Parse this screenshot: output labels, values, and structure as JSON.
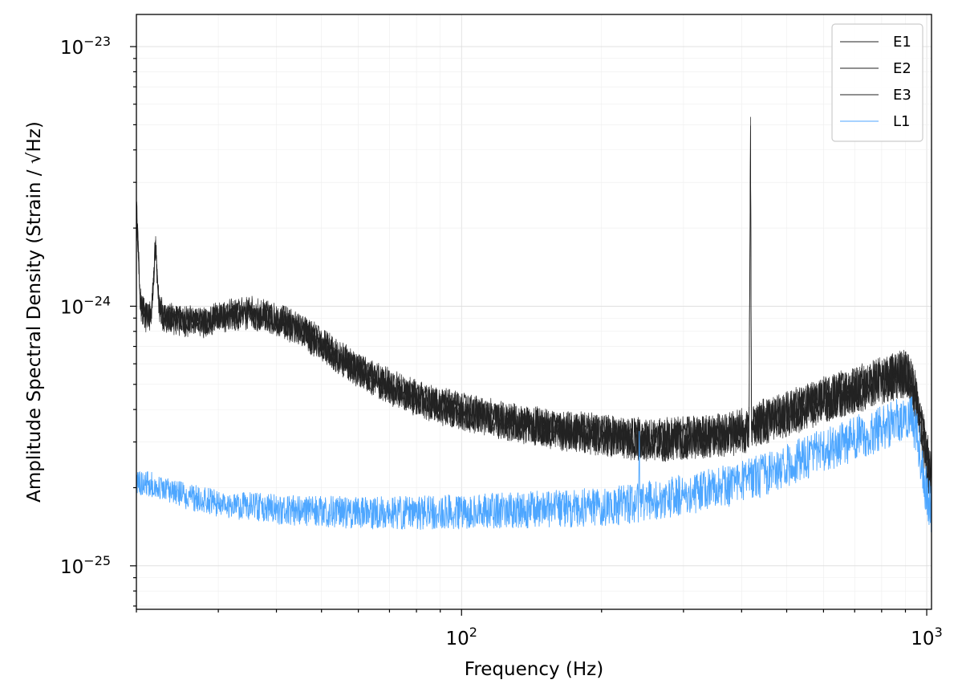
{
  "chart_data": {
    "type": "line",
    "title": "",
    "xlabel": "Frequency (Hz)",
    "ylabel": "Amplitude Spectral Density (Strain / √Hz)",
    "xscale": "log",
    "yscale": "log",
    "xlim": [
      20,
      1024
    ],
    "ylim": [
      6.8e-26,
      1.33e-23
    ],
    "x_ticks": [
      {
        "base": "10",
        "exp": "2",
        "value": 100
      },
      {
        "base": "10",
        "exp": "3",
        "value": 1000
      }
    ],
    "y_ticks": [
      {
        "base": "10",
        "exp": "−25",
        "value": 1e-25
      },
      {
        "base": "10",
        "exp": "−24",
        "value": 1e-24
      },
      {
        "base": "10",
        "exp": "−23",
        "value": 1e-23
      }
    ],
    "grid": true,
    "legend_position": "top-right",
    "series": [
      {
        "name": "E1",
        "color": "#222222",
        "x": [
          20,
          20.4,
          21,
          21.5,
          22,
          22.4,
          23,
          25,
          28,
          30,
          33,
          35,
          38,
          42,
          47,
          52,
          60,
          70,
          80,
          90,
          100,
          110,
          130,
          150,
          170,
          200,
          230,
          260,
          300,
          350,
          400,
          415,
          418,
          420,
          422,
          425,
          440,
          500,
          600,
          700,
          800,
          860,
          900,
          930,
          950,
          980,
          1000,
          1024
        ],
        "y": [
          2.5e-24,
          1.05e-24,
          9.2e-25,
          9.3e-25,
          1.8e-24,
          1e-24,
          9.3e-25,
          9e-25,
          8.8e-25,
          9.3e-25,
          9.5e-25,
          9.7e-25,
          9.3e-25,
          8.8e-25,
          7.9e-25,
          6.9e-25,
          5.8e-25,
          5e-25,
          4.5e-25,
          4.2e-25,
          4e-25,
          3.85e-25,
          3.6e-25,
          3.45e-25,
          3.35e-25,
          3.25e-25,
          3.15e-25,
          3.1e-25,
          3.15e-25,
          3.2e-25,
          3.35e-25,
          3.4e-25,
          4.95e-24,
          3.45e-25,
          3.45e-25,
          3.5e-25,
          3.6e-25,
          3.9e-25,
          4.4e-25,
          4.8e-25,
          5.2e-25,
          5.4e-25,
          5.6e-25,
          5.2e-25,
          4.5e-25,
          3.3e-25,
          2.7e-25,
          2.2e-25
        ]
      },
      {
        "name": "E2",
        "color": "#222222",
        "x": [
          20,
          20.4,
          21,
          21.5,
          22,
          22.4,
          23,
          25,
          28,
          30,
          33,
          35,
          38,
          42,
          47,
          52,
          60,
          70,
          80,
          90,
          100,
          110,
          130,
          150,
          170,
          200,
          230,
          260,
          300,
          350,
          400,
          415,
          418,
          420,
          422,
          425,
          440,
          500,
          600,
          700,
          800,
          860,
          900,
          930,
          950,
          980,
          1000,
          1024
        ],
        "y": [
          2.4e-24,
          1e-24,
          9e-25,
          9.1e-25,
          1.7e-24,
          9.8e-25,
          9e-25,
          8.9e-25,
          8.7e-25,
          9.1e-25,
          9.3e-25,
          9.5e-25,
          9.1e-25,
          8.6e-25,
          7.7e-25,
          6.8e-25,
          5.7e-25,
          4.9e-25,
          4.4e-25,
          4.1e-25,
          3.9e-25,
          3.8e-25,
          3.55e-25,
          3.4e-25,
          3.3e-25,
          3.2e-25,
          3.1e-25,
          3.05e-25,
          3.1e-25,
          3.15e-25,
          3.3e-25,
          3.35e-25,
          4.8e-24,
          3.4e-25,
          3.4e-25,
          3.45e-25,
          3.55e-25,
          3.85e-25,
          4.35e-25,
          4.75e-25,
          5.15e-25,
          5.35e-25,
          5.5e-25,
          5.1e-25,
          4.4e-25,
          3.2e-25,
          2.6e-25,
          2.15e-25
        ]
      },
      {
        "name": "E3",
        "color": "#222222",
        "x": [
          20,
          20.4,
          21,
          21.5,
          22,
          22.4,
          23,
          25,
          28,
          30,
          33,
          35,
          38,
          42,
          47,
          52,
          60,
          70,
          80,
          90,
          100,
          110,
          130,
          150,
          170,
          200,
          230,
          260,
          300,
          350,
          400,
          415,
          418,
          420,
          422,
          425,
          440,
          500,
          600,
          700,
          800,
          860,
          900,
          930,
          950,
          980,
          1000,
          1024
        ],
        "y": [
          2.45e-24,
          1e-24,
          8.8e-25,
          9e-25,
          1.6e-24,
          9.5e-25,
          8.8e-25,
          8.6e-25,
          8.5e-25,
          8.9e-25,
          9.1e-25,
          9.2e-25,
          8.9e-25,
          8.4e-25,
          7.5e-25,
          6.6e-25,
          5.6e-25,
          4.8e-25,
          4.35e-25,
          4.05e-25,
          3.85e-25,
          3.75e-25,
          3.5e-25,
          3.35e-25,
          3.25e-25,
          3.15e-25,
          3.05e-25,
          3e-25,
          3.05e-25,
          3.1e-25,
          3.25e-25,
          3.3e-25,
          4.7e-24,
          3.35e-25,
          3.35e-25,
          3.4e-25,
          3.5e-25,
          3.8e-25,
          4.3e-25,
          4.7e-25,
          5.1e-25,
          5.3e-25,
          5.45e-25,
          5e-25,
          4.3e-25,
          3.1e-25,
          2.5e-25,
          2.1e-25
        ]
      },
      {
        "name": "L1",
        "color": "#4da6ff",
        "x": [
          20,
          21,
          22,
          24,
          26,
          28,
          30,
          33,
          36,
          40,
          45,
          50,
          60,
          70,
          80,
          100,
          120,
          150,
          180,
          200,
          230,
          240,
          241,
          242,
          250,
          280,
          300,
          350,
          400,
          450,
          500,
          600,
          700,
          800,
          880,
          930,
          960,
          990,
          1024
        ],
        "y": [
          2.05e-25,
          2.1e-25,
          2e-25,
          1.9e-25,
          1.85e-25,
          1.78e-25,
          1.75e-25,
          1.7e-25,
          1.68e-25,
          1.65e-25,
          1.63e-25,
          1.62e-25,
          1.6e-25,
          1.6e-25,
          1.6e-25,
          1.62e-25,
          1.63e-25,
          1.65e-25,
          1.67e-25,
          1.69e-25,
          1.72e-25,
          1.75e-25,
          3.3e-25,
          1.75e-25,
          1.78e-25,
          1.83e-25,
          1.88e-25,
          1.98e-25,
          2.1e-25,
          2.25e-25,
          2.45e-25,
          2.8e-25,
          3.1e-25,
          3.4e-25,
          3.65e-25,
          3.7e-25,
          3e-25,
          2.1e-25,
          1.6e-25
        ]
      }
    ]
  }
}
